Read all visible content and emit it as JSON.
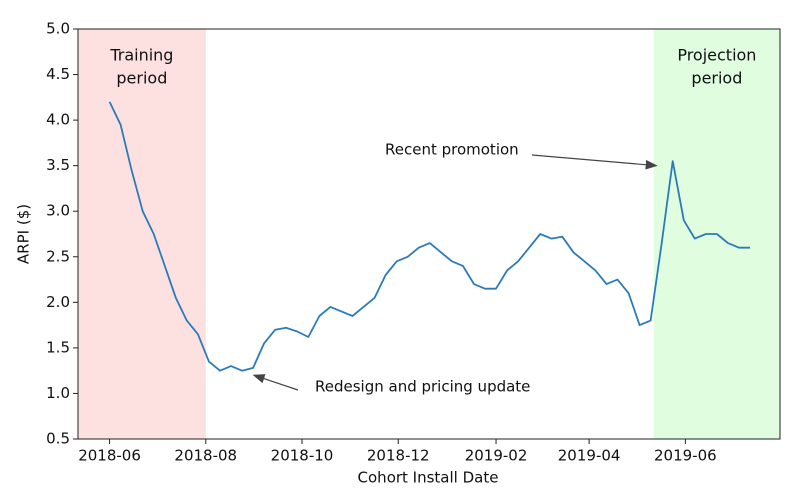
{
  "chart_data": {
    "type": "line",
    "xlabel": "Cohort Install Date",
    "ylabel": "ARPI ($)",
    "x": [
      "2018-06-01",
      "2018-06-08",
      "2018-06-15",
      "2018-06-22",
      "2018-06-29",
      "2018-07-06",
      "2018-07-13",
      "2018-07-20",
      "2018-07-27",
      "2018-08-03",
      "2018-08-10",
      "2018-08-17",
      "2018-08-24",
      "2018-08-31",
      "2018-09-07",
      "2018-09-14",
      "2018-09-21",
      "2018-09-28",
      "2018-10-05",
      "2018-10-12",
      "2018-10-19",
      "2018-10-26",
      "2018-11-02",
      "2018-11-09",
      "2018-11-16",
      "2018-11-23",
      "2018-11-30",
      "2018-12-07",
      "2018-12-14",
      "2018-12-21",
      "2018-12-28",
      "2019-01-04",
      "2019-01-11",
      "2019-01-18",
      "2019-01-25",
      "2019-02-01",
      "2019-02-08",
      "2019-02-15",
      "2019-02-22",
      "2019-03-01",
      "2019-03-08",
      "2019-03-15",
      "2019-03-22",
      "2019-03-29",
      "2019-04-05",
      "2019-04-12",
      "2019-04-19",
      "2019-04-26",
      "2019-05-03",
      "2019-05-10",
      "2019-05-17",
      "2019-05-24",
      "2019-05-31",
      "2019-06-07",
      "2019-06-14",
      "2019-06-21",
      "2019-06-28",
      "2019-07-05",
      "2019-07-12"
    ],
    "series": [
      {
        "name": "ARPI",
        "color": "#2b7bba",
        "values": [
          4.2,
          3.95,
          3.45,
          3.0,
          2.75,
          2.4,
          2.05,
          1.8,
          1.65,
          1.35,
          1.25,
          1.3,
          1.25,
          1.28,
          1.55,
          1.7,
          1.72,
          1.68,
          1.62,
          1.85,
          1.95,
          1.9,
          1.85,
          1.95,
          2.05,
          2.3,
          2.45,
          2.5,
          2.6,
          2.65,
          2.55,
          2.45,
          2.4,
          2.2,
          2.15,
          2.15,
          2.35,
          2.45,
          2.6,
          2.75,
          2.7,
          2.72,
          2.55,
          2.45,
          2.35,
          2.2,
          2.25,
          2.1,
          1.75,
          1.8,
          2.65,
          3.55,
          2.9,
          2.7,
          2.75,
          2.75,
          2.65,
          2.6,
          2.6
        ]
      }
    ],
    "xlim": [
      "2018-05-12",
      "2019-07-31"
    ],
    "xticks": [
      {
        "value": "2018-06-01",
        "label": "2018-06"
      },
      {
        "value": "2018-08-01",
        "label": "2018-08"
      },
      {
        "value": "2018-10-01",
        "label": "2018-10"
      },
      {
        "value": "2018-12-01",
        "label": "2018-12"
      },
      {
        "value": "2019-02-01",
        "label": "2019-02"
      },
      {
        "value": "2019-04-01",
        "label": "2019-04"
      },
      {
        "value": "2019-06-01",
        "label": "2019-06"
      }
    ],
    "ylim": [
      0.5,
      5
    ],
    "yticks": [
      0.5,
      {
        "value": 1,
        "label": "1.0"
      },
      1.5,
      {
        "value": 2,
        "label": "2.0"
      },
      2.5,
      {
        "value": 3,
        "label": "3.0"
      },
      3.5,
      {
        "value": 4,
        "label": "4.0"
      },
      4.5,
      {
        "value": 5,
        "label": "5.0"
      }
    ],
    "regions": [
      {
        "label": [
          "Training",
          "period"
        ],
        "start": "2018-05-12",
        "end": "2018-08-01",
        "color": "#fde0e0"
      },
      {
        "label": [
          "Projection",
          "period"
        ],
        "start": "2019-05-12",
        "end": "2019-07-31",
        "color": "#e0fde0"
      }
    ],
    "annotations": [
      {
        "text": "Recent promotion",
        "x": "2019-05-15",
        "y": 3.5
      },
      {
        "text": "Redesign and pricing update",
        "x": "2018-09-03",
        "y": 1.2
      }
    ]
  }
}
